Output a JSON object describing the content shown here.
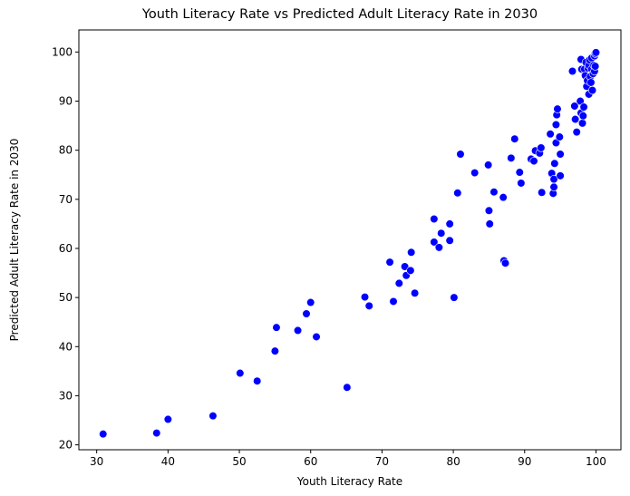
{
  "chart_data": {
    "type": "scatter",
    "title": "Youth Literacy Rate vs Predicted Adult Literacy Rate in 2030",
    "xlabel": "Youth Literacy Rate",
    "ylabel": "Predicted Adult Literacy Rate in 2030",
    "xlim": [
      27.5,
      103.5
    ],
    "ylim": [
      19.0,
      104.5
    ],
    "xticks": [
      30,
      40,
      50,
      60,
      70,
      80,
      90,
      100
    ],
    "yticks": [
      20,
      30,
      40,
      50,
      60,
      70,
      80,
      90,
      100
    ],
    "grid": false,
    "legend": "none",
    "marker_color": "#0000ff",
    "marker_edge_color": "#ffffff",
    "points": [
      [
        30.9,
        22.2
      ],
      [
        38.4,
        22.4
      ],
      [
        40.0,
        25.2
      ],
      [
        46.3,
        25.9
      ],
      [
        50.1,
        34.6
      ],
      [
        52.5,
        33.0
      ],
      [
        55.0,
        39.1
      ],
      [
        55.2,
        43.9
      ],
      [
        58.2,
        43.3
      ],
      [
        59.4,
        46.7
      ],
      [
        60.0,
        49.0
      ],
      [
        60.8,
        42.0
      ],
      [
        65.1,
        31.7
      ],
      [
        67.6,
        50.1
      ],
      [
        68.2,
        48.3
      ],
      [
        71.1,
        57.2
      ],
      [
        71.6,
        49.2
      ],
      [
        72.4,
        52.9
      ],
      [
        73.2,
        56.3
      ],
      [
        73.4,
        54.5
      ],
      [
        74.0,
        55.5
      ],
      [
        74.1,
        59.2
      ],
      [
        74.6,
        50.9
      ],
      [
        77.3,
        61.3
      ],
      [
        77.3,
        66.0
      ],
      [
        78.0,
        60.2
      ],
      [
        78.3,
        63.1
      ],
      [
        79.5,
        61.6
      ],
      [
        79.5,
        65.0
      ],
      [
        80.1,
        50.0
      ],
      [
        80.6,
        71.3
      ],
      [
        81.0,
        79.2
      ],
      [
        83.0,
        75.4
      ],
      [
        84.9,
        77.0
      ],
      [
        85.0,
        67.7
      ],
      [
        85.1,
        65.0
      ],
      [
        85.7,
        71.5
      ],
      [
        87.0,
        70.4
      ],
      [
        87.1,
        57.5
      ],
      [
        87.3,
        57.0
      ],
      [
        88.1,
        78.4
      ],
      [
        88.6,
        82.3
      ],
      [
        89.3,
        75.5
      ],
      [
        89.5,
        73.3
      ],
      [
        90.9,
        78.2
      ],
      [
        91.3,
        77.8
      ],
      [
        91.5,
        79.9
      ],
      [
        92.1,
        79.4
      ],
      [
        92.3,
        80.5
      ],
      [
        92.4,
        71.4
      ],
      [
        93.6,
        83.3
      ],
      [
        93.8,
        75.3
      ],
      [
        94.0,
        71.2
      ],
      [
        94.1,
        72.5
      ],
      [
        94.1,
        74.1
      ],
      [
        94.2,
        77.3
      ],
      [
        94.4,
        85.2
      ],
      [
        94.4,
        81.5
      ],
      [
        94.5,
        87.2
      ],
      [
        94.6,
        88.4
      ],
      [
        94.9,
        82.7
      ],
      [
        95.0,
        79.2
      ],
      [
        95.0,
        74.8
      ],
      [
        96.7,
        96.1
      ],
      [
        97.0,
        89.0
      ],
      [
        97.1,
        86.3
      ],
      [
        97.3,
        83.7
      ],
      [
        97.8,
        90.0
      ],
      [
        97.9,
        87.6
      ],
      [
        97.9,
        98.5
      ],
      [
        98.0,
        96.5
      ],
      [
        98.1,
        85.5
      ],
      [
        98.2,
        87.0
      ],
      [
        98.3,
        88.8
      ],
      [
        98.4,
        96.5
      ],
      [
        98.5,
        95.2
      ],
      [
        98.6,
        97.9
      ],
      [
        98.7,
        93.0
      ],
      [
        98.8,
        94.2
      ],
      [
        98.9,
        96.7
      ],
      [
        99.0,
        91.4
      ],
      [
        99.0,
        97.3
      ],
      [
        99.1,
        98.4
      ],
      [
        99.2,
        95.0
      ],
      [
        99.3,
        93.8
      ],
      [
        99.4,
        96.5
      ],
      [
        99.4,
        98.8
      ],
      [
        99.5,
        92.2
      ],
      [
        99.6,
        95.6
      ],
      [
        99.7,
        97.3
      ],
      [
        99.8,
        96.1
      ],
      [
        99.8,
        99.2
      ],
      [
        99.9,
        99.7
      ],
      [
        99.9,
        97.1
      ],
      [
        100.0,
        99.9
      ]
    ]
  }
}
